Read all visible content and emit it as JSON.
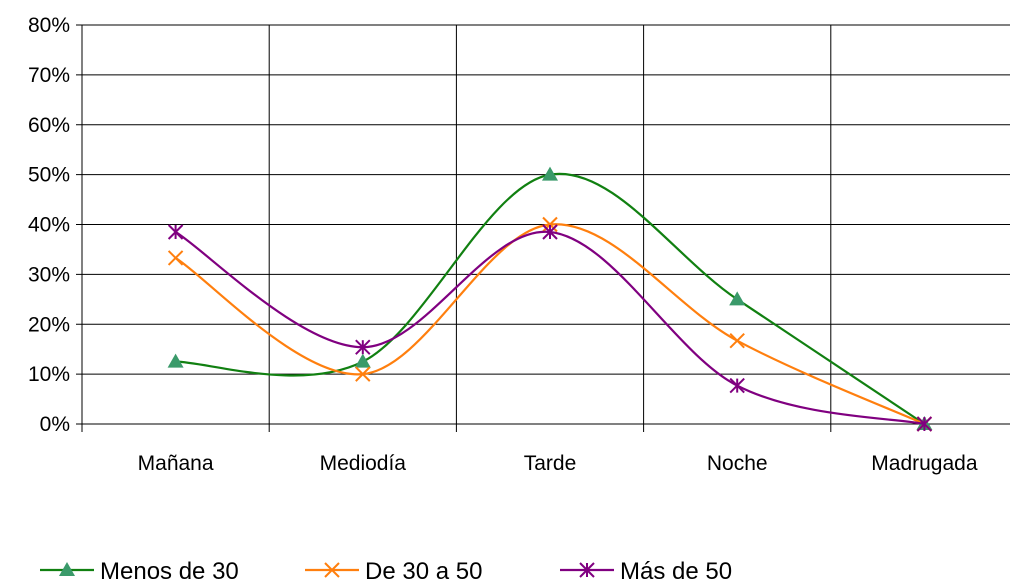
{
  "chart_data": {
    "type": "line",
    "categories": [
      "Mañana",
      "Mediodía",
      "Tarde",
      "Noche",
      "Madrugada"
    ],
    "y_ticks": [
      "0%",
      "10%",
      "20%",
      "30%",
      "40%",
      "50%",
      "60%",
      "70%",
      "80%"
    ],
    "ylim": [
      0,
      80
    ],
    "grid": true,
    "smooth": true,
    "legend_position": "bottom",
    "series": [
      {
        "name": "Menos de 30",
        "values": [
          12.5,
          12.5,
          50,
          25,
          0
        ],
        "color": "#118011",
        "marker_color": "#3a9a6a",
        "marker": "triangle"
      },
      {
        "name": "De 30 a 50",
        "values": [
          33.3,
          10,
          40,
          16.7,
          0
        ],
        "color": "#ff7f0e",
        "marker_color": "#ff7f0e",
        "marker": "x"
      },
      {
        "name": "Más de 50",
        "values": [
          38.5,
          15.4,
          38.5,
          7.7,
          0
        ],
        "color": "#800080",
        "marker_color": "#800080",
        "marker": "star"
      }
    ]
  }
}
